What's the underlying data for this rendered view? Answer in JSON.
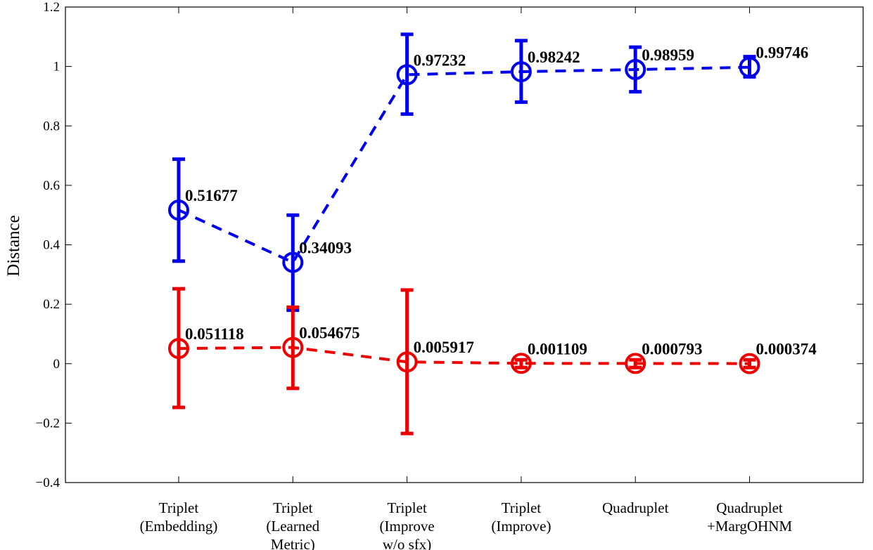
{
  "chart_data": {
    "type": "line",
    "title": "",
    "xlabel": "",
    "ylabel": "Distance",
    "ylim": [
      -0.4,
      1.2
    ],
    "yticks": [
      1.2,
      1,
      0.8,
      0.6,
      0.4,
      0.2,
      0,
      -0.2,
      -0.4
    ],
    "ytick_labels": [
      "1.2",
      "1",
      "0.8",
      "0.6",
      "0.4",
      "0.2",
      "0",
      "−0.2",
      "−0.4"
    ],
    "grid": false,
    "categories": [
      [
        "Triplet",
        "(Embedding)"
      ],
      [
        "Triplet",
        "(Learned",
        "Metric)"
      ],
      [
        "Triplet",
        "(Improve",
        "w/o sfx)"
      ],
      [
        "Triplet",
        "(Improve)"
      ],
      [
        "Quadruplet"
      ],
      [
        "Quadruplet",
        "+MargOHNM"
      ]
    ],
    "series": [
      {
        "name": "blue",
        "color": "#0000ee",
        "values": [
          0.51677,
          0.34093,
          0.97232,
          0.98242,
          0.98959,
          0.99746
        ],
        "err_low": [
          0.345,
          0.18,
          0.84,
          0.88,
          0.915,
          0.965
        ],
        "err_high": [
          0.688,
          0.5,
          1.108,
          1.087,
          1.065,
          1.033
        ],
        "labels": [
          "0.51677",
          "0.34093",
          "0.97232",
          "0.98242",
          "0.98959",
          "0.99746"
        ]
      },
      {
        "name": "red",
        "color": "#ee0000",
        "values": [
          0.051118,
          0.054675,
          0.005917,
          0.001109,
          0.000793,
          0.000374
        ],
        "err_low": [
          -0.147,
          -0.083,
          -0.235,
          -0.013,
          -0.013,
          -0.013
        ],
        "err_high": [
          0.252,
          0.19,
          0.248,
          0.013,
          0.013,
          0.013
        ],
        "labels": [
          "0.051118",
          "0.054675",
          "0.005917",
          "0.001109",
          "0.000793",
          "0.000374"
        ]
      }
    ]
  }
}
